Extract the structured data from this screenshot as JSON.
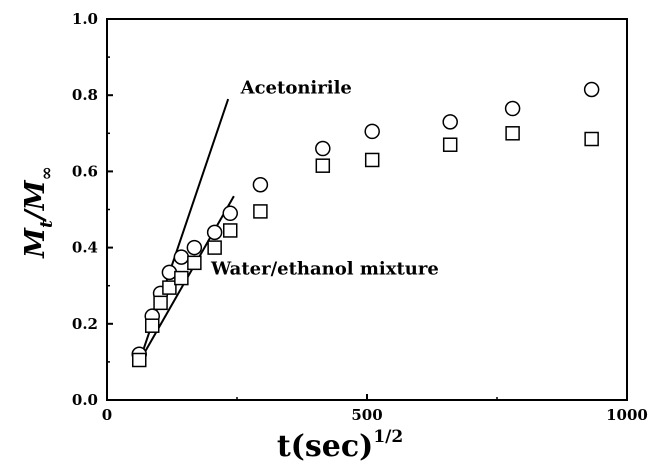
{
  "chart_data": {
    "type": "scatter",
    "xlim": [
      0,
      1000
    ],
    "ylim": [
      0.0,
      1.0
    ],
    "x_ticks": [
      "0",
      "500",
      "1000"
    ],
    "y_ticks": [
      "0.0",
      "0.2",
      "0.4",
      "0.6",
      "0.8",
      "1.0"
    ],
    "xlabel": {
      "main": "t(sec)",
      "sup": "1/2"
    },
    "ylabel": {
      "main": "M",
      "sub1": "t",
      "slash": "/M",
      "sub2": "∞"
    },
    "grid": false,
    "series": [
      {
        "marker": "circle",
        "points": [
          {
            "x": 62,
            "y": 0.12
          },
          {
            "x": 87,
            "y": 0.22
          },
          {
            "x": 103,
            "y": 0.28
          },
          {
            "x": 120,
            "y": 0.335
          },
          {
            "x": 143,
            "y": 0.375
          },
          {
            "x": 168,
            "y": 0.4
          },
          {
            "x": 207,
            "y": 0.44
          },
          {
            "x": 237,
            "y": 0.49
          },
          {
            "x": 295,
            "y": 0.565
          },
          {
            "x": 415,
            "y": 0.66
          },
          {
            "x": 510,
            "y": 0.705
          },
          {
            "x": 660,
            "y": 0.73
          },
          {
            "x": 780,
            "y": 0.765
          },
          {
            "x": 932,
            "y": 0.815
          }
        ]
      },
      {
        "marker": "square",
        "points": [
          {
            "x": 62,
            "y": 0.105
          },
          {
            "x": 87,
            "y": 0.195
          },
          {
            "x": 103,
            "y": 0.255
          },
          {
            "x": 120,
            "y": 0.295
          },
          {
            "x": 143,
            "y": 0.32
          },
          {
            "x": 168,
            "y": 0.36
          },
          {
            "x": 207,
            "y": 0.4
          },
          {
            "x": 237,
            "y": 0.445
          },
          {
            "x": 295,
            "y": 0.495
          },
          {
            "x": 415,
            "y": 0.615
          },
          {
            "x": 510,
            "y": 0.63
          },
          {
            "x": 660,
            "y": 0.67
          },
          {
            "x": 780,
            "y": 0.7
          },
          {
            "x": 932,
            "y": 0.685
          }
        ]
      }
    ],
    "fit_lines": [
      {
        "x1": 62,
        "y1": 0.1,
        "x2": 233,
        "y2": 0.79
      },
      {
        "x1": 62,
        "y1": 0.1,
        "x2": 244,
        "y2": 0.535
      }
    ],
    "annotations": [
      {
        "text": "Acetonirile",
        "x": 257,
        "y": 0.82
      },
      {
        "text": "Water/ethanol mixture",
        "x": 200,
        "y": 0.345
      }
    ]
  }
}
